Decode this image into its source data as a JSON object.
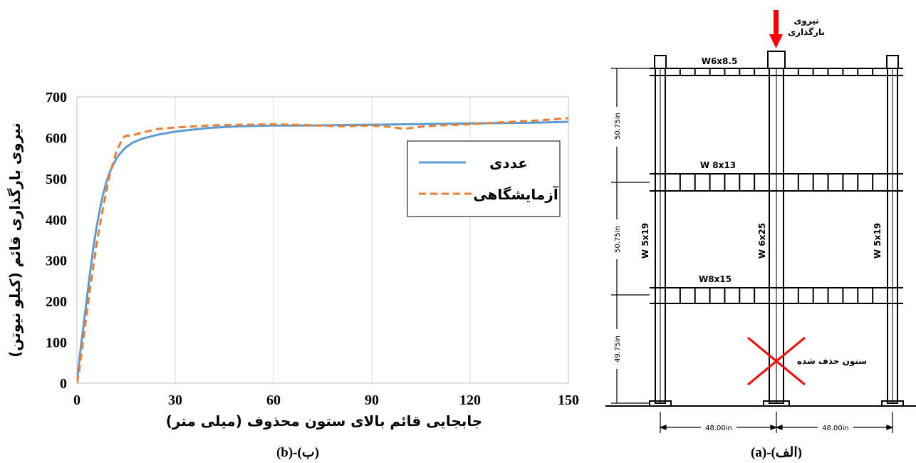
{
  "chart_data": {
    "type": "line",
    "xlabel": "جابجایی قائم بالای ستون محذوف (میلی متر)",
    "ylabel": "نیروی بارگذاری قائم (کیلو نیوتن)",
    "xlim": [
      0,
      150
    ],
    "ylim": [
      0,
      700
    ],
    "xticks": [
      0,
      30,
      60,
      90,
      120,
      150
    ],
    "yticks": [
      0,
      100,
      200,
      300,
      400,
      500,
      600,
      700
    ],
    "grid": "vertical",
    "legend_position": "right-middle",
    "series": [
      {
        "name": "عددی",
        "color": "#5b9bd5",
        "style": "solid",
        "x": [
          0,
          0.5,
          1,
          2,
          3,
          4,
          5,
          6,
          7,
          8,
          9,
          10,
          11,
          12,
          13,
          14,
          15,
          17,
          20,
          25,
          30,
          40,
          50,
          60,
          70,
          80,
          90,
          100,
          110,
          120,
          130,
          140,
          150
        ],
        "y": [
          0,
          40,
          75,
          140,
          205,
          270,
          330,
          382,
          425,
          462,
          492,
          515,
          533,
          548,
          560,
          569,
          577,
          588,
          598,
          608,
          615,
          624,
          628,
          630,
          630,
          631,
          632,
          633,
          634,
          635,
          636,
          637,
          639
        ]
      },
      {
        "name": "آزمایشگاهی",
        "color": "#ed7d31",
        "style": "dashed",
        "x": [
          0,
          0.5,
          1,
          2,
          4,
          6,
          8,
          10,
          12,
          14,
          15,
          17,
          20,
          25,
          30,
          40,
          50,
          60,
          70,
          80,
          90,
          95,
          100,
          105,
          110,
          120,
          130,
          140,
          150
        ],
        "y": [
          0,
          20,
          50,
          110,
          230,
          340,
          430,
          510,
          565,
          600,
          605,
          606,
          613,
          622,
          625,
          630,
          632,
          633,
          631,
          628,
          630,
          627,
          622,
          627,
          630,
          633,
          638,
          642,
          648
        ]
      }
    ]
  },
  "panel_labels": {
    "left": "(b)-(ب)",
    "right": "(a)-(الف)"
  },
  "frame_diagram": {
    "load_label_line1": "نیروی",
    "load_label_line2": "بارگذاری",
    "beam_labels": [
      "W6x8.5",
      "W 8x13",
      "W8x15"
    ],
    "column_labels": [
      "W 5x19",
      "W 6x25",
      "W 5x19"
    ],
    "story_heights": [
      "50.75in",
      "50.75in",
      "49.75in"
    ],
    "bay_widths": [
      "48.00in",
      "48.00in"
    ],
    "removed_column_label": "ستون حذف شده",
    "colors": {
      "load_arrow": "#ff0000",
      "removed_cross": "#ff0000"
    }
  }
}
